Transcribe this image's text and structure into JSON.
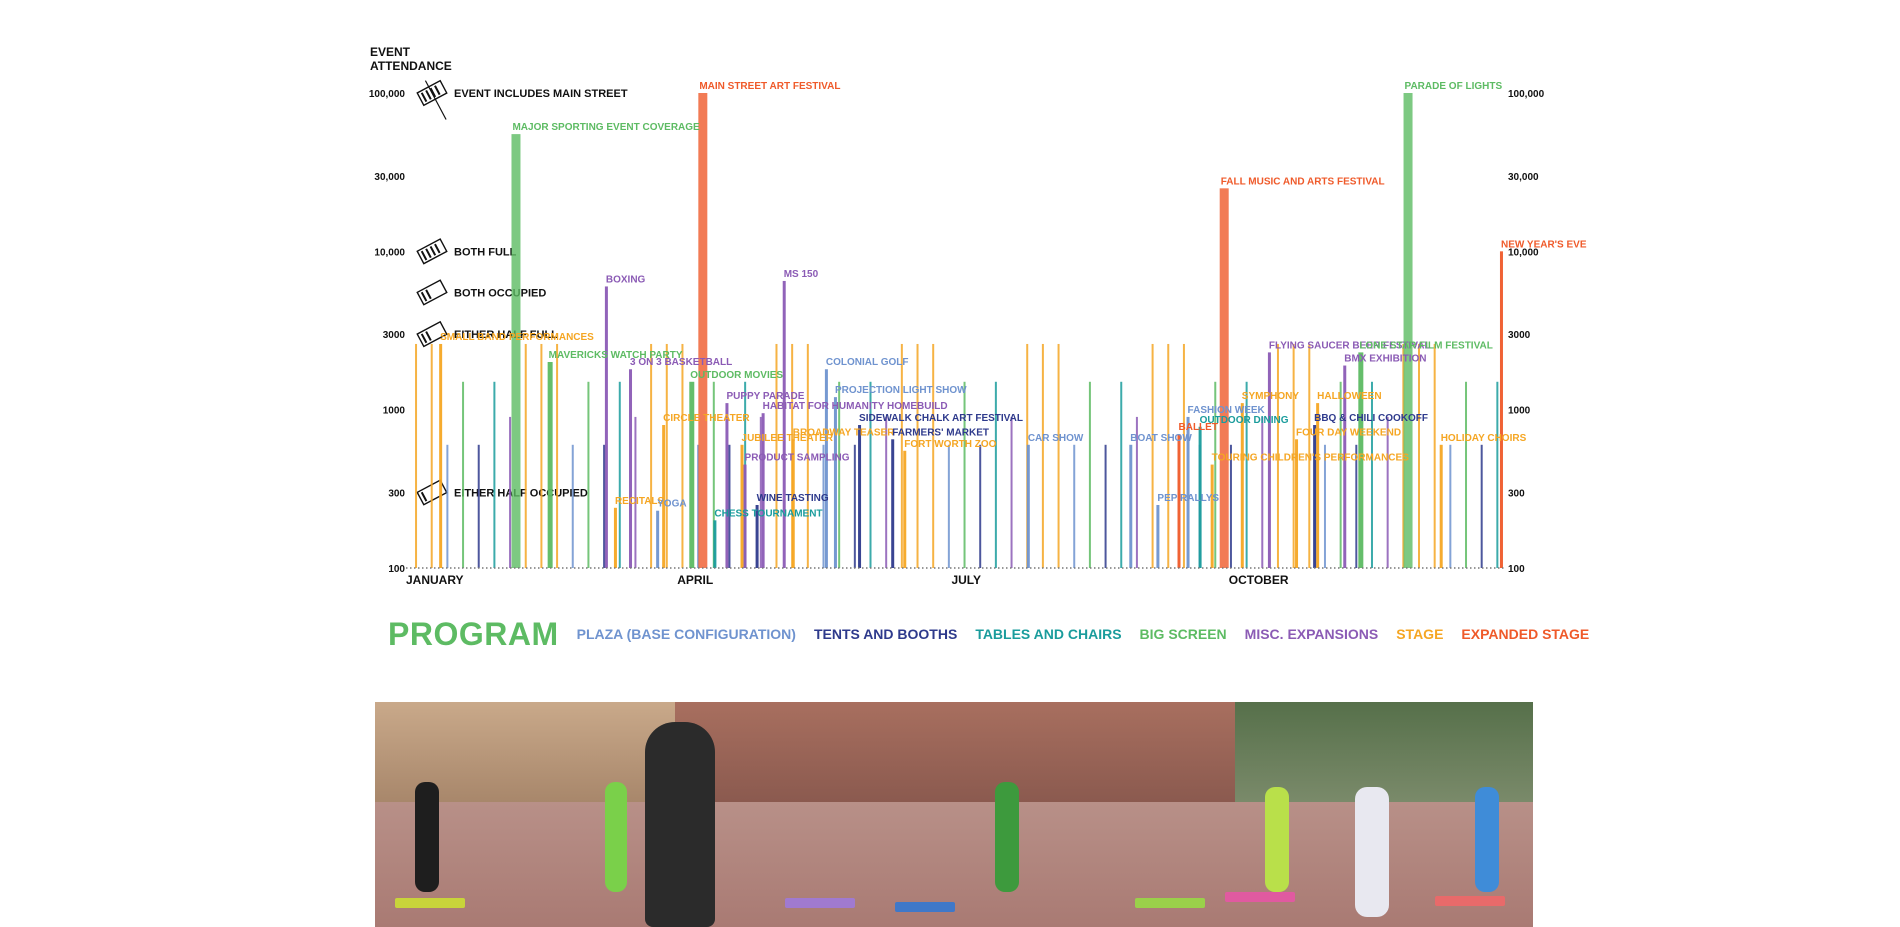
{
  "chart_data": {
    "type": "bar",
    "title": "",
    "y_axis_title": "EVENT ATTENDANCE",
    "y_scale": "log",
    "ylim": [
      100,
      100000
    ],
    "y_ticks": [
      "100,000",
      "30,000",
      "10,000",
      "3000",
      "1000",
      "300",
      "100"
    ],
    "y_tick_values": [
      100000,
      30000,
      10000,
      3000,
      1000,
      300,
      100
    ],
    "x_range_days": [
      0,
      365
    ],
    "month_labels": [
      {
        "label": "JANUARY",
        "day": 0
      },
      {
        "label": "APRIL",
        "day": 90
      },
      {
        "label": "JULY",
        "day": 181
      },
      {
        "label": "OCTOBER",
        "day": 273
      }
    ],
    "key_items": [
      {
        "label": "EVENT INCLUDES MAIN STREET",
        "value": 100000
      },
      {
        "label": "BOTH FULL",
        "value": 10000
      },
      {
        "label": "BOTH OCCUPIED",
        "value": 5500
      },
      {
        "label": "EITHER HALF FULL",
        "value": 3000
      },
      {
        "label": "EITHER HALF OCCUPIED",
        "value": 300
      }
    ],
    "series": [
      {
        "name": "PLAZA (BASE CONFIGURATION)",
        "color": "#6f93cf"
      },
      {
        "name": "TENTS AND BOOTHS",
        "color": "#2e3a8c"
      },
      {
        "name": "TABLES AND CHAIRS",
        "color": "#1a9c9c"
      },
      {
        "name": "BIG SCREEN",
        "color": "#5dbb63"
      },
      {
        "name": "MISC. EXPANSIONS",
        "color": "#8b5bb5"
      },
      {
        "name": "STAGE",
        "color": "#f5a623"
      },
      {
        "name": "EXPANDED STAGE",
        "color": "#ef5a2a"
      }
    ],
    "events": [
      {
        "label": "MAIN STREET ART FESTIVAL",
        "day": 97,
        "value": 100000,
        "series": "EXPANDED STAGE"
      },
      {
        "label": "MAJOR SPORTING EVENT COVERAGE",
        "day": 35,
        "value": 55000,
        "series": "BIG SCREEN"
      },
      {
        "label": "PARADE OF LIGHTS",
        "day": 331,
        "value": 100000,
        "series": "BIG SCREEN"
      },
      {
        "label": "FALL MUSIC AND ARTS FESTIVAL",
        "day": 270,
        "value": 25000,
        "series": "EXPANDED STAGE"
      },
      {
        "label": "NEW YEAR'S EVE",
        "day": 363,
        "value": 10000,
        "series": "EXPANDED STAGE"
      },
      {
        "label": "BOXING",
        "day": 66,
        "value": 6000,
        "series": "MISC. EXPANSIONS"
      },
      {
        "label": "MS 150",
        "day": 125,
        "value": 6500,
        "series": "MISC. EXPANSIONS"
      },
      {
        "label": "SMALL BAND PERFORMANCES",
        "day": 11,
        "value": 2600,
        "series": "STAGE"
      },
      {
        "label": "MAVERICKS WATCH PARTY",
        "day": 47,
        "value": 2000,
        "series": "BIG SCREEN"
      },
      {
        "label": "3 ON 3 BASKETBALL",
        "day": 74,
        "value": 1800,
        "series": "MISC. EXPANSIONS"
      },
      {
        "label": "OUTDOOR MOVIES",
        "day": 94,
        "value": 1500,
        "series": "BIG SCREEN"
      },
      {
        "label": "COLONIAL GOLF",
        "day": 139,
        "value": 1800,
        "series": "PLAZA (BASE CONFIGURATION)"
      },
      {
        "label": "PROJECTION LIGHT SHOW",
        "day": 142,
        "value": 1200,
        "series": "PLAZA (BASE CONFIGURATION)"
      },
      {
        "label": "PUPPY PARADE",
        "day": 106,
        "value": 1100,
        "series": "MISC. EXPANSIONS"
      },
      {
        "label": "HABITAT FOR HUMANITY HOMEBUILD",
        "day": 118,
        "value": 950,
        "series": "MISC. EXPANSIONS"
      },
      {
        "label": "CIRCLE THEATER",
        "day": 85,
        "value": 800,
        "series": "STAGE"
      },
      {
        "label": "SIDEWALK CHALK ART FESTIVAL",
        "day": 150,
        "value": 800,
        "series": "TENTS AND BOOTHS"
      },
      {
        "label": "BROADWAY TEASER",
        "day": 128,
        "value": 650,
        "series": "STAGE"
      },
      {
        "label": "FARMERS' MARKET",
        "day": 161,
        "value": 650,
        "series": "TENTS AND BOOTHS"
      },
      {
        "label": "JUBILEE THEATER",
        "day": 111,
        "value": 600,
        "series": "STAGE"
      },
      {
        "label": "FORT WORTH ZOO",
        "day": 165,
        "value": 550,
        "series": "STAGE"
      },
      {
        "label": "PRODUCT SAMPLING",
        "day": 112,
        "value": 450,
        "series": "MISC. EXPANSIONS"
      },
      {
        "label": "CAR SHOW",
        "day": 206,
        "value": 600,
        "series": "PLAZA (BASE CONFIGURATION)"
      },
      {
        "label": "BOAT SHOW",
        "day": 240,
        "value": 600,
        "series": "PLAZA (BASE CONFIGURATION)"
      },
      {
        "label": "RECITALS",
        "day": 69,
        "value": 240,
        "series": "STAGE"
      },
      {
        "label": "YOGA",
        "day": 83,
        "value": 230,
        "series": "PLAZA (BASE CONFIGURATION)"
      },
      {
        "label": "WINE TASTING",
        "day": 116,
        "value": 250,
        "series": "TENTS AND BOOTHS"
      },
      {
        "label": "CHESS TOURNAMENT",
        "day": 102,
        "value": 200,
        "series": "TABLES AND CHAIRS"
      },
      {
        "label": "PEP RALLYS",
        "day": 249,
        "value": 250,
        "series": "PLAZA (BASE CONFIGURATION)"
      },
      {
        "label": "BALLET",
        "day": 256,
        "value": 700,
        "series": "EXPANDED STAGE"
      },
      {
        "label": "FASHION WEEK",
        "day": 259,
        "value": 900,
        "series": "PLAZA (BASE CONFIGURATION)"
      },
      {
        "label": "OUTDOOR DINING",
        "day": 263,
        "value": 780,
        "series": "TABLES AND CHAIRS"
      },
      {
        "label": "SYMPHONY",
        "day": 277,
        "value": 1100,
        "series": "STAGE"
      },
      {
        "label": "TOURING CHILDREN'S PERFORMANCES",
        "day": 267,
        "value": 450,
        "series": "STAGE"
      },
      {
        "label": "FLYING SAUCER BEER FESTIVAL",
        "day": 286,
        "value": 2300,
        "series": "MISC. EXPANSIONS"
      },
      {
        "label": "BMX EXHIBITION",
        "day": 311,
        "value": 1900,
        "series": "MISC. EXPANSIONS"
      },
      {
        "label": "LONE STAR FILM FESTIVAL",
        "day": 316,
        "value": 2300,
        "series": "BIG SCREEN"
      },
      {
        "label": "HALLOWEEN",
        "day": 302,
        "value": 1100,
        "series": "STAGE"
      },
      {
        "label": "BBQ & CHILI COOKOFF",
        "day": 301,
        "value": 800,
        "series": "TENTS AND BOOTHS"
      },
      {
        "label": "FOUR DAY WEEKEND",
        "day": 295,
        "value": 650,
        "series": "STAGE"
      },
      {
        "label": "HOLIDAY CHOIRS",
        "day": 343,
        "value": 600,
        "series": "STAGE"
      }
    ]
  },
  "legend": {
    "title": "PROGRAM",
    "title_color": "#5dbb63",
    "items": [
      {
        "label": "PLAZA (BASE CONFIGURATION)",
        "color": "#6f93cf"
      },
      {
        "label": "TENTS AND BOOTHS",
        "color": "#2e3a8c"
      },
      {
        "label": "TABLES AND CHAIRS",
        "color": "#1a9c9c"
      },
      {
        "label": "BIG SCREEN",
        "color": "#5dbb63"
      },
      {
        "label": "MISC. EXPANSIONS",
        "color": "#8b5bb5"
      },
      {
        "label": "STAGE",
        "color": "#f5a623"
      },
      {
        "label": "EXPANDED STAGE",
        "color": "#ef5a2a"
      }
    ]
  }
}
